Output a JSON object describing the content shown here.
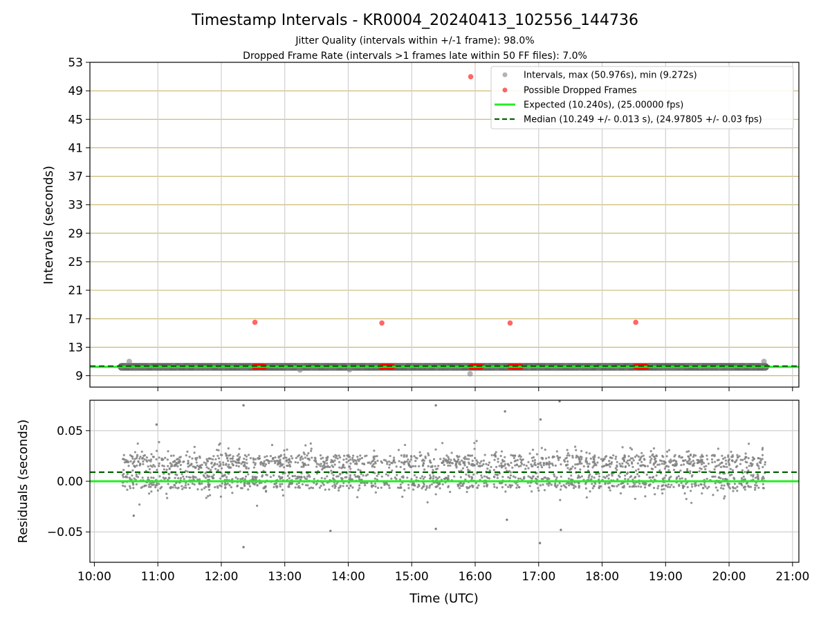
{
  "figure": {
    "title": "Timestamp Intervals - KR0004_20240413_102556_144736",
    "subtitle_1": "Jitter Quality (intervals within +/-1 frame): 98.0%",
    "subtitle_2": "Dropped Frame Rate (intervals >1 frames late within 50 FF files): 7.0%"
  },
  "colors": {
    "intervals": "#808080",
    "dropped": "#ff0000",
    "expected": "#22ee22",
    "median": "#006400",
    "hgrid_top": "#c8b464",
    "grid": "#cfcfcf"
  },
  "chart_data": [
    {
      "type": "scatter",
      "panel": "intervals",
      "xlabel": "",
      "ylabel": "Intervals (seconds)",
      "xlim": [
        9.93,
        21.1
      ],
      "ylim": [
        7.4,
        53
      ],
      "yticks": [
        9,
        13,
        17,
        21,
        25,
        29,
        33,
        37,
        41,
        45,
        49,
        53
      ],
      "xticks": [
        11,
        12,
        13,
        14,
        15,
        16,
        17,
        18,
        19,
        20,
        21
      ],
      "grid": true,
      "legend_position": "top-right",
      "legend": [
        "Intervals, max (50.976s), min (9.272s)",
        "Possible Dropped Frames",
        "Expected (10.240s), (25.00000 fps)",
        "Median (10.249 +/- 0.013 s), (24.97805 +/- 0.03 fps)"
      ],
      "series": [
        {
          "name": "Intervals, max (50.976s), min (9.272s)",
          "kind": "band",
          "x_range": [
            10.43,
            20.57
          ],
          "y_approx": 10.25,
          "outliers": [
            {
              "x": 10.55,
              "y": 11.0
            },
            {
              "x": 11.25,
              "y": 10.35
            },
            {
              "x": 11.6,
              "y": 10.15
            },
            {
              "x": 13.22,
              "y": 10.4
            },
            {
              "x": 13.24,
              "y": 9.8
            },
            {
              "x": 14.0,
              "y": 10.4
            },
            {
              "x": 14.02,
              "y": 9.85
            },
            {
              "x": 15.4,
              "y": 10.3
            },
            {
              "x": 15.92,
              "y": 9.27
            },
            {
              "x": 16.85,
              "y": 10.2
            },
            {
              "x": 19.55,
              "y": 10.3
            },
            {
              "x": 19.85,
              "y": 10.15
            },
            {
              "x": 20.55,
              "y": 11.0
            }
          ]
        },
        {
          "name": "Possible Dropped Frames",
          "points": [
            {
              "x": 12.53,
              "y": 16.5
            },
            {
              "x": 14.53,
              "y": 16.4
            },
            {
              "x": 15.93,
              "y": 50.98
            },
            {
              "x": 16.55,
              "y": 16.4
            },
            {
              "x": 18.53,
              "y": 16.5
            }
          ],
          "clusters": [
            {
              "x_range": [
                12.52,
                12.68
              ],
              "y": 10.25
            },
            {
              "x_range": [
                14.52,
                14.7
              ],
              "y": 10.25
            },
            {
              "x_range": [
                15.93,
                16.1
              ],
              "y": 10.25
            },
            {
              "x_range": [
                16.55,
                16.72
              ],
              "y": 10.25
            },
            {
              "x_range": [
                18.53,
                18.7
              ],
              "y": 10.25
            }
          ]
        },
        {
          "name": "Expected (10.240s), (25.00000 fps)",
          "kind": "hline",
          "y": 10.24
        },
        {
          "name": "Median (10.249 +/- 0.013 s), (24.97805 +/- 0.03 fps)",
          "kind": "hline",
          "y": 10.249
        }
      ]
    },
    {
      "type": "scatter",
      "panel": "residuals",
      "xlabel": "Time (UTC)",
      "ylabel": "Residuals (seconds)",
      "xlim": [
        9.93,
        21.1
      ],
      "ylim": [
        -0.08,
        0.08
      ],
      "yticks": [
        -0.05,
        0.0,
        0.05
      ],
      "ytick_labels": [
        "−0.05",
        "0.00",
        "0.05"
      ],
      "xticks": [
        10,
        11,
        12,
        13,
        14,
        15,
        16,
        17,
        18,
        19,
        20,
        21
      ],
      "xtick_labels": [
        "10:00",
        "11:00",
        "12:00",
        "13:00",
        "14:00",
        "15:00",
        "16:00",
        "17:00",
        "18:00",
        "19:00",
        "20:00",
        "21:00"
      ],
      "grid": true,
      "series": [
        {
          "name": "",
          "kind": "residual_cloud",
          "x_range": [
            10.43,
            20.57
          ],
          "y_center": 0.009,
          "y_spread": 0.035
        },
        {
          "name": "",
          "kind": "hline",
          "y": 0.0
        },
        {
          "name": "",
          "kind": "hline",
          "y": 0.009,
          "style": "dashed"
        }
      ],
      "outliers": [
        {
          "x": 10.62,
          "y": -0.034
        },
        {
          "x": 10.98,
          "y": 0.056
        },
        {
          "x": 12.35,
          "y": 0.075
        },
        {
          "x": 12.35,
          "y": -0.065
        },
        {
          "x": 13.72,
          "y": -0.049
        },
        {
          "x": 15.38,
          "y": 0.075
        },
        {
          "x": 15.38,
          "y": -0.047
        },
        {
          "x": 16.47,
          "y": 0.069
        },
        {
          "x": 16.5,
          "y": -0.038
        },
        {
          "x": 17.03,
          "y": 0.061
        },
        {
          "x": 17.02,
          "y": -0.061
        },
        {
          "x": 17.35,
          "y": -0.048
        },
        {
          "x": 17.33,
          "y": 0.079
        }
      ]
    }
  ]
}
